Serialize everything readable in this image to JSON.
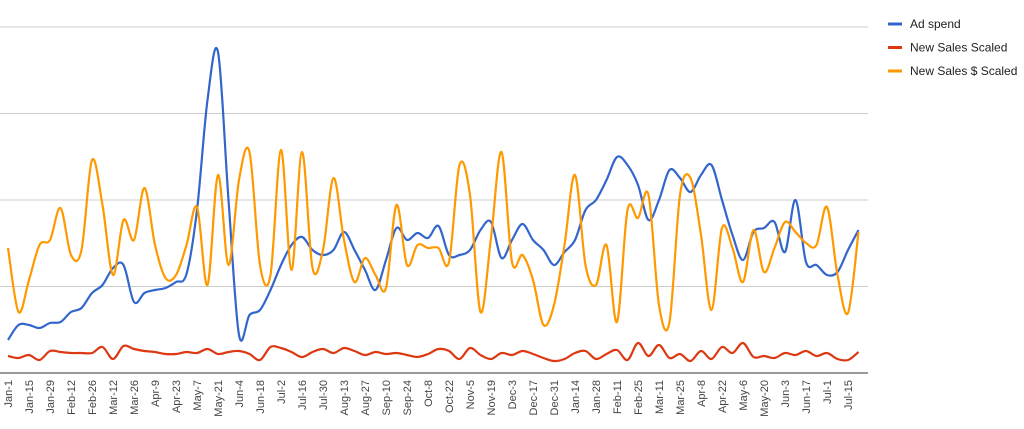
{
  "chart_data": {
    "type": "line",
    "categories": [
      "Jan-1",
      null,
      "Jan-15",
      null,
      "Jan-29",
      null,
      "Feb-12",
      null,
      "Feb-26",
      null,
      "Mar-12",
      null,
      "Mar-26",
      null,
      "Apr-9",
      null,
      "Apr-23",
      null,
      "May-7",
      null,
      "May-21",
      null,
      "Jun-4",
      null,
      "Jun-18",
      null,
      "Jul-2",
      null,
      "Jul-16",
      null,
      "Jul-30",
      null,
      "Aug-13",
      null,
      "Aug-27",
      null,
      "Sep-10",
      null,
      "Sep-24",
      null,
      "Oct-8",
      null,
      "Oct-22",
      null,
      "Nov-5",
      null,
      "Nov-19",
      null,
      "Dec-3",
      null,
      "Dec-17",
      null,
      "Dec-31",
      null,
      "Jan-14",
      null,
      "Jan-28",
      null,
      "Feb-11",
      null,
      "Feb-25",
      null,
      "Mar-11",
      null,
      "Mar-25",
      null,
      "Apr-8",
      null,
      "Apr-22",
      null,
      "May-6",
      null,
      "May-20",
      null,
      "Jun-3",
      null,
      "Jun-17",
      null,
      "Jul-1",
      null,
      "Jul-15",
      null
    ],
    "series": [
      {
        "name": "Ad spend",
        "color": "#3366cc",
        "values": [
          33,
          48,
          48,
          45,
          50,
          51,
          61,
          65,
          80,
          88,
          105,
          108,
          71,
          80,
          83,
          85,
          91,
          99,
          163,
          273,
          321,
          173,
          38,
          58,
          63,
          83,
          108,
          128,
          136,
          123,
          118,
          123,
          141,
          123,
          103,
          83,
          113,
          145,
          133,
          140,
          135,
          147,
          118,
          118,
          123,
          143,
          151,
          115,
          133,
          149,
          133,
          123,
          108,
          121,
          133,
          163,
          173,
          193,
          216,
          208,
          188,
          153,
          173,
          203,
          195,
          181,
          198,
          208,
          173,
          138,
          113,
          141,
          145,
          151,
          121,
          173,
          111,
          108,
          98,
          101,
          123,
          143
        ]
      },
      {
        "name": "New Sales Scaled",
        "color": "#dc3912",
        "values": [
          17,
          15,
          18,
          13,
          22,
          21,
          20,
          20,
          20,
          26,
          14,
          27,
          24,
          22,
          21,
          19,
          19,
          21,
          20,
          24,
          19,
          21,
          22,
          19,
          13,
          26,
          25,
          21,
          16,
          21,
          24,
          20,
          25,
          22,
          18,
          21,
          19,
          20,
          18,
          16,
          19,
          24,
          22,
          14,
          25,
          18,
          14,
          20,
          18,
          22,
          19,
          15,
          12,
          14,
          20,
          22,
          14,
          19,
          23,
          13,
          30,
          17,
          28,
          15,
          19,
          12,
          22,
          14,
          26,
          20,
          30,
          16,
          17,
          15,
          20,
          18,
          22,
          17,
          20,
          14,
          13,
          21
        ]
      },
      {
        "name": "New Sales $ Scaled",
        "color": "#ff9900",
        "values": [
          125,
          61,
          93,
          128,
          133,
          165,
          118,
          123,
          213,
          168,
          98,
          153,
          133,
          185,
          128,
          95,
          98,
          128,
          166,
          88,
          198,
          108,
          193,
          221,
          108,
          98,
          223,
          103,
          221,
          105,
          123,
          195,
          133,
          91,
          115,
          98,
          85,
          168,
          108,
          128,
          125,
          125,
          111,
          208,
          178,
          61,
          135,
          221,
          111,
          118,
          93,
          48,
          68,
          128,
          198,
          108,
          88,
          128,
          51,
          163,
          155,
          178,
          68,
          51,
          178,
          195,
          138,
          63,
          145,
          125,
          91,
          143,
          101,
          125,
          151,
          141,
          130,
          128,
          166,
          98,
          60,
          141
        ]
      }
    ],
    "ylim": [
      0,
      346
    ],
    "yticks": [
      0,
      86.5,
      173,
      259.5,
      346
    ],
    "grid": true,
    "legend": "right"
  }
}
